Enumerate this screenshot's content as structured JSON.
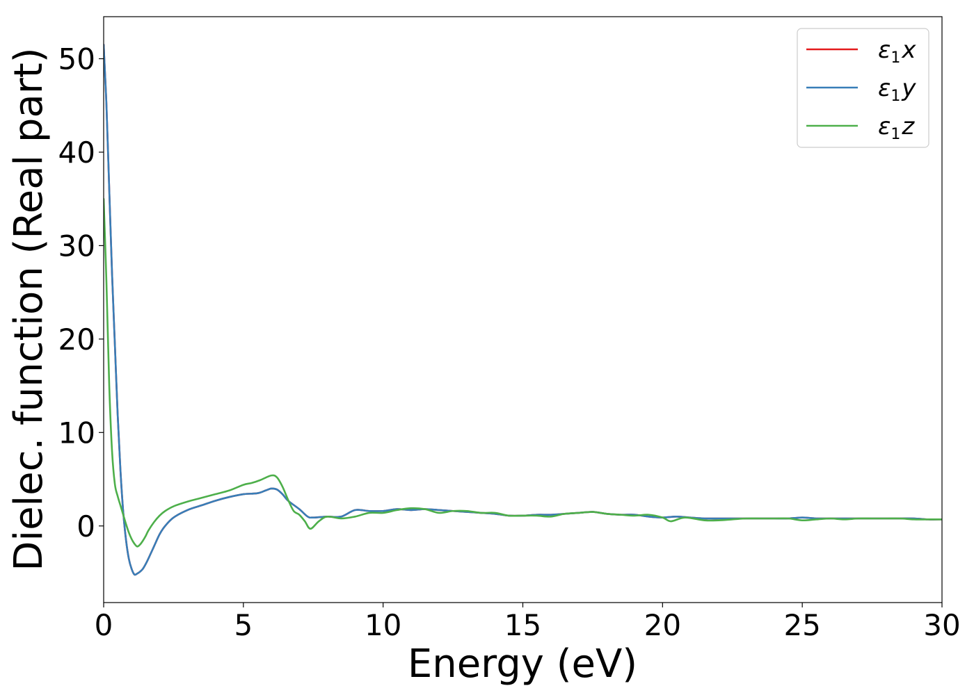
{
  "chart_data": {
    "type": "line",
    "title": "",
    "xlabel": "Energy (eV)",
    "ylabel": "Dielec. function (Real part)",
    "xlim": [
      0,
      30
    ],
    "ylim": [
      -8.2,
      54.5
    ],
    "xticks": [
      0,
      5,
      10,
      15,
      20,
      25,
      30
    ],
    "xtick_labels": [
      "0",
      "5",
      "10",
      "15",
      "20",
      "25",
      "30"
    ],
    "yticks": [
      0,
      10,
      20,
      30,
      40,
      50
    ],
    "ytick_labels": [
      "0",
      "10",
      "20",
      "30",
      "40",
      "50"
    ],
    "grid": false,
    "legend_position": "upper-right",
    "legend": [
      {
        "base": "ε",
        "sub": "1",
        "tail": "x",
        "color": "#e41a1c"
      },
      {
        "base": "ε",
        "sub": "1",
        "tail": "y",
        "color": "#377eb8"
      },
      {
        "base": "ε",
        "sub": "1",
        "tail": "z",
        "color": "#4daf4a"
      }
    ],
    "series": [
      {
        "name": "ε1x",
        "color": "#e41a1c",
        "x": [
          0.0,
          0.1,
          0.2,
          0.3,
          0.4,
          0.5,
          0.6,
          0.7,
          0.8,
          0.9,
          1.0,
          1.1,
          1.2,
          1.3,
          1.4,
          1.5,
          1.6,
          1.8,
          2.0,
          2.2,
          2.5,
          3.0,
          3.5,
          4.0,
          4.5,
          5.0,
          5.5,
          5.8,
          6.0,
          6.2,
          6.4,
          6.6,
          7.0,
          7.3,
          7.5,
          8.0,
          8.5,
          9.0,
          9.5,
          10.0,
          10.5,
          11.0,
          11.5,
          12.0,
          12.5,
          13.0,
          13.5,
          14.0,
          14.5,
          15.0,
          15.5,
          16.0,
          16.5,
          17.0,
          17.5,
          18.0,
          18.5,
          19.0,
          19.5,
          20.0,
          20.5,
          21.0,
          21.5,
          22.0,
          22.5,
          23.0,
          23.5,
          24.0,
          24.5,
          25.0,
          25.5,
          26.0,
          26.5,
          27.0,
          27.5,
          28.0,
          28.5,
          29.0,
          29.5,
          30.0
        ],
        "y": [
          51.5,
          45.0,
          36.0,
          27.0,
          19.5,
          12.0,
          6.0,
          1.5,
          -1.5,
          -3.5,
          -4.6,
          -5.2,
          -5.1,
          -4.9,
          -4.6,
          -4.1,
          -3.5,
          -2.2,
          -0.9,
          0.0,
          0.9,
          1.7,
          2.2,
          2.7,
          3.1,
          3.4,
          3.5,
          3.8,
          4.0,
          3.9,
          3.4,
          2.7,
          1.8,
          1.0,
          0.9,
          1.0,
          1.0,
          1.7,
          1.6,
          1.6,
          1.8,
          1.7,
          1.8,
          1.7,
          1.6,
          1.5,
          1.4,
          1.3,
          1.1,
          1.1,
          1.2,
          1.2,
          1.3,
          1.4,
          1.5,
          1.3,
          1.2,
          1.2,
          1.0,
          0.9,
          1.0,
          0.9,
          0.8,
          0.8,
          0.8,
          0.8,
          0.8,
          0.8,
          0.8,
          0.9,
          0.8,
          0.8,
          0.8,
          0.8,
          0.8,
          0.8,
          0.8,
          0.8,
          0.7,
          0.7
        ]
      },
      {
        "name": "ε1y",
        "color": "#377eb8",
        "x": [
          0.0,
          0.1,
          0.2,
          0.3,
          0.4,
          0.5,
          0.6,
          0.7,
          0.8,
          0.9,
          1.0,
          1.1,
          1.2,
          1.3,
          1.4,
          1.5,
          1.6,
          1.8,
          2.0,
          2.2,
          2.5,
          3.0,
          3.5,
          4.0,
          4.5,
          5.0,
          5.5,
          5.8,
          6.0,
          6.2,
          6.4,
          6.6,
          7.0,
          7.3,
          7.5,
          8.0,
          8.5,
          9.0,
          9.5,
          10.0,
          10.5,
          11.0,
          11.5,
          12.0,
          12.5,
          13.0,
          13.5,
          14.0,
          14.5,
          15.0,
          15.5,
          16.0,
          16.5,
          17.0,
          17.5,
          18.0,
          18.5,
          19.0,
          19.5,
          20.0,
          20.5,
          21.0,
          21.5,
          22.0,
          22.5,
          23.0,
          23.5,
          24.0,
          24.5,
          25.0,
          25.5,
          26.0,
          26.5,
          27.0,
          27.5,
          28.0,
          28.5,
          29.0,
          29.5,
          30.0
        ],
        "y": [
          51.5,
          45.0,
          36.0,
          27.0,
          19.5,
          12.0,
          6.0,
          1.5,
          -1.5,
          -3.5,
          -4.6,
          -5.2,
          -5.1,
          -4.9,
          -4.6,
          -4.1,
          -3.5,
          -2.2,
          -0.9,
          0.0,
          0.9,
          1.7,
          2.2,
          2.7,
          3.1,
          3.4,
          3.5,
          3.8,
          4.0,
          3.9,
          3.4,
          2.7,
          1.8,
          1.0,
          0.9,
          1.0,
          1.0,
          1.7,
          1.6,
          1.6,
          1.8,
          1.7,
          1.8,
          1.7,
          1.6,
          1.5,
          1.4,
          1.3,
          1.1,
          1.1,
          1.2,
          1.2,
          1.3,
          1.4,
          1.5,
          1.3,
          1.2,
          1.2,
          1.0,
          0.9,
          1.0,
          0.9,
          0.8,
          0.8,
          0.8,
          0.8,
          0.8,
          0.8,
          0.8,
          0.9,
          0.8,
          0.8,
          0.8,
          0.8,
          0.8,
          0.8,
          0.8,
          0.8,
          0.7,
          0.7
        ]
      },
      {
        "name": "ε1z",
        "color": "#4daf4a",
        "x": [
          0.0,
          0.1,
          0.2,
          0.3,
          0.4,
          0.5,
          0.6,
          0.7,
          0.8,
          0.9,
          1.0,
          1.1,
          1.2,
          1.3,
          1.4,
          1.5,
          1.6,
          1.8,
          2.0,
          2.2,
          2.5,
          3.0,
          3.5,
          4.0,
          4.5,
          5.0,
          5.3,
          5.6,
          6.0,
          6.2,
          6.4,
          6.6,
          6.8,
          7.0,
          7.2,
          7.4,
          7.7,
          8.0,
          8.5,
          9.0,
          9.5,
          10.0,
          10.5,
          11.0,
          11.5,
          12.0,
          12.5,
          13.0,
          13.5,
          14.0,
          14.5,
          15.0,
          15.5,
          16.0,
          16.5,
          17.0,
          17.5,
          18.0,
          18.5,
          19.0,
          19.5,
          20.0,
          20.3,
          20.8,
          21.5,
          22.0,
          22.5,
          23.0,
          23.5,
          24.0,
          24.5,
          25.0,
          25.5,
          26.0,
          26.5,
          27.0,
          27.5,
          28.0,
          28.5,
          29.0,
          29.5,
          30.0
        ],
        "y": [
          35.0,
          26.0,
          15.0,
          8.0,
          4.5,
          3.2,
          2.2,
          1.2,
          0.2,
          -0.7,
          -1.4,
          -1.9,
          -2.2,
          -2.0,
          -1.6,
          -1.1,
          -0.5,
          0.4,
          1.1,
          1.6,
          2.1,
          2.6,
          3.0,
          3.4,
          3.8,
          4.4,
          4.6,
          4.9,
          5.4,
          5.2,
          4.2,
          2.8,
          1.6,
          1.2,
          0.5,
          -0.3,
          0.5,
          1.0,
          0.8,
          1.0,
          1.4,
          1.4,
          1.7,
          1.9,
          1.8,
          1.4,
          1.6,
          1.6,
          1.4,
          1.4,
          1.1,
          1.1,
          1.1,
          1.0,
          1.3,
          1.4,
          1.5,
          1.3,
          1.2,
          1.1,
          1.2,
          0.9,
          0.5,
          0.9,
          0.6,
          0.6,
          0.7,
          0.8,
          0.8,
          0.8,
          0.8,
          0.6,
          0.7,
          0.8,
          0.7,
          0.8,
          0.8,
          0.8,
          0.8,
          0.7,
          0.7,
          0.7
        ]
      }
    ]
  }
}
